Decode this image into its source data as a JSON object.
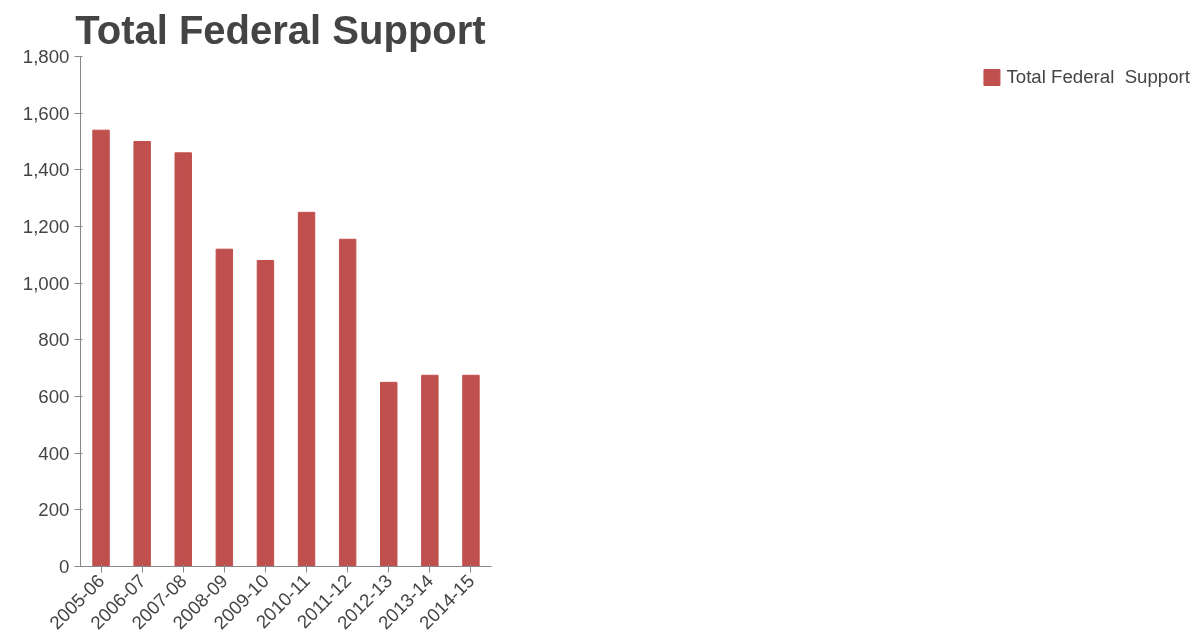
{
  "chart_data": {
    "type": "bar",
    "title": "Total Federal  Support",
    "categories": [
      "2005-06",
      "2006-07",
      "2007-08",
      "2008-09",
      "2009-10",
      "2010-11",
      "2011-12",
      "2012-13",
      "2013-14",
      "2014-15"
    ],
    "series": [
      {
        "name": "Total Federal  Support",
        "color": "#c0504d",
        "values": [
          1540,
          1500,
          1460,
          1120,
          1080,
          1250,
          1155,
          650,
          675,
          675
        ]
      }
    ],
    "ylim": [
      0,
      1800
    ],
    "yticks": [
      0,
      {
        "value": 200,
        "label": "200"
      },
      {
        "value": 400,
        "label": "400"
      },
      {
        "value": 600,
        "label": "600"
      },
      {
        "value": 800,
        "label": "800"
      },
      {
        "value": 1000,
        "label": "1,000"
      },
      {
        "value": 1200,
        "label": "1,200"
      },
      {
        "value": 1400,
        "label": "1,400"
      },
      {
        "value": 1600,
        "label": "1,600"
      },
      {
        "value": 1800,
        "label": "1,800"
      }
    ],
    "grid": false,
    "legend": "right"
  }
}
